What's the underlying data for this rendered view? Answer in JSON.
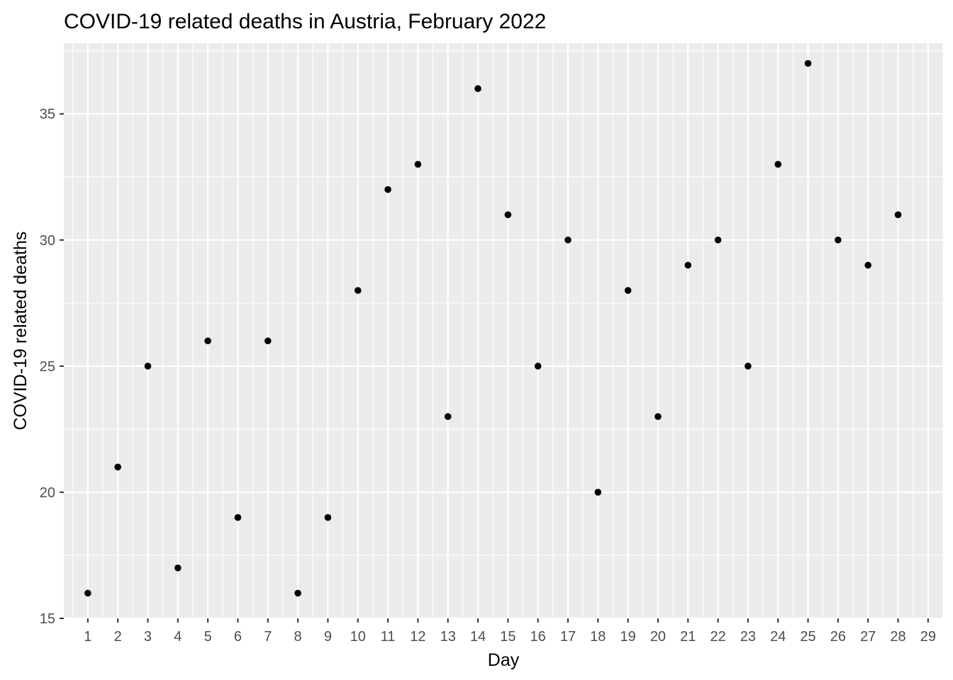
{
  "chart_data": {
    "type": "scatter",
    "title": "COVID-19 related deaths in Austria, February 2022",
    "xlabel": "Day",
    "ylabel": "COVID-19 related deaths",
    "x": [
      1,
      2,
      3,
      4,
      5,
      6,
      7,
      8,
      9,
      10,
      11,
      12,
      13,
      14,
      15,
      16,
      17,
      18,
      19,
      20,
      21,
      22,
      23,
      24,
      25,
      26,
      27,
      28
    ],
    "y": [
      16,
      21,
      25,
      17,
      26,
      19,
      26,
      16,
      19,
      28,
      32,
      33,
      23,
      36,
      31,
      25,
      30,
      20,
      28,
      23,
      29,
      30,
      25,
      33,
      37,
      30,
      29,
      31
    ],
    "xlim": [
      0.2,
      29.5
    ],
    "ylim": [
      15,
      37.8
    ],
    "x_ticks": [
      "1",
      "2",
      "3",
      "4",
      "5",
      "6",
      "7",
      "8",
      "9",
      "10",
      "11",
      "12",
      "13",
      "14",
      "15",
      "16",
      "17",
      "18",
      "19",
      "20",
      "21",
      "22",
      "23",
      "24",
      "25",
      "26",
      "27",
      "28",
      "29"
    ],
    "y_ticks": [
      "15",
      "20",
      "25",
      "30",
      "35"
    ],
    "grid": true,
    "colors": {
      "panel": "#ebebeb",
      "grid": "#ffffff",
      "point": "#000000",
      "tick_text": "#4d4d4d"
    }
  }
}
